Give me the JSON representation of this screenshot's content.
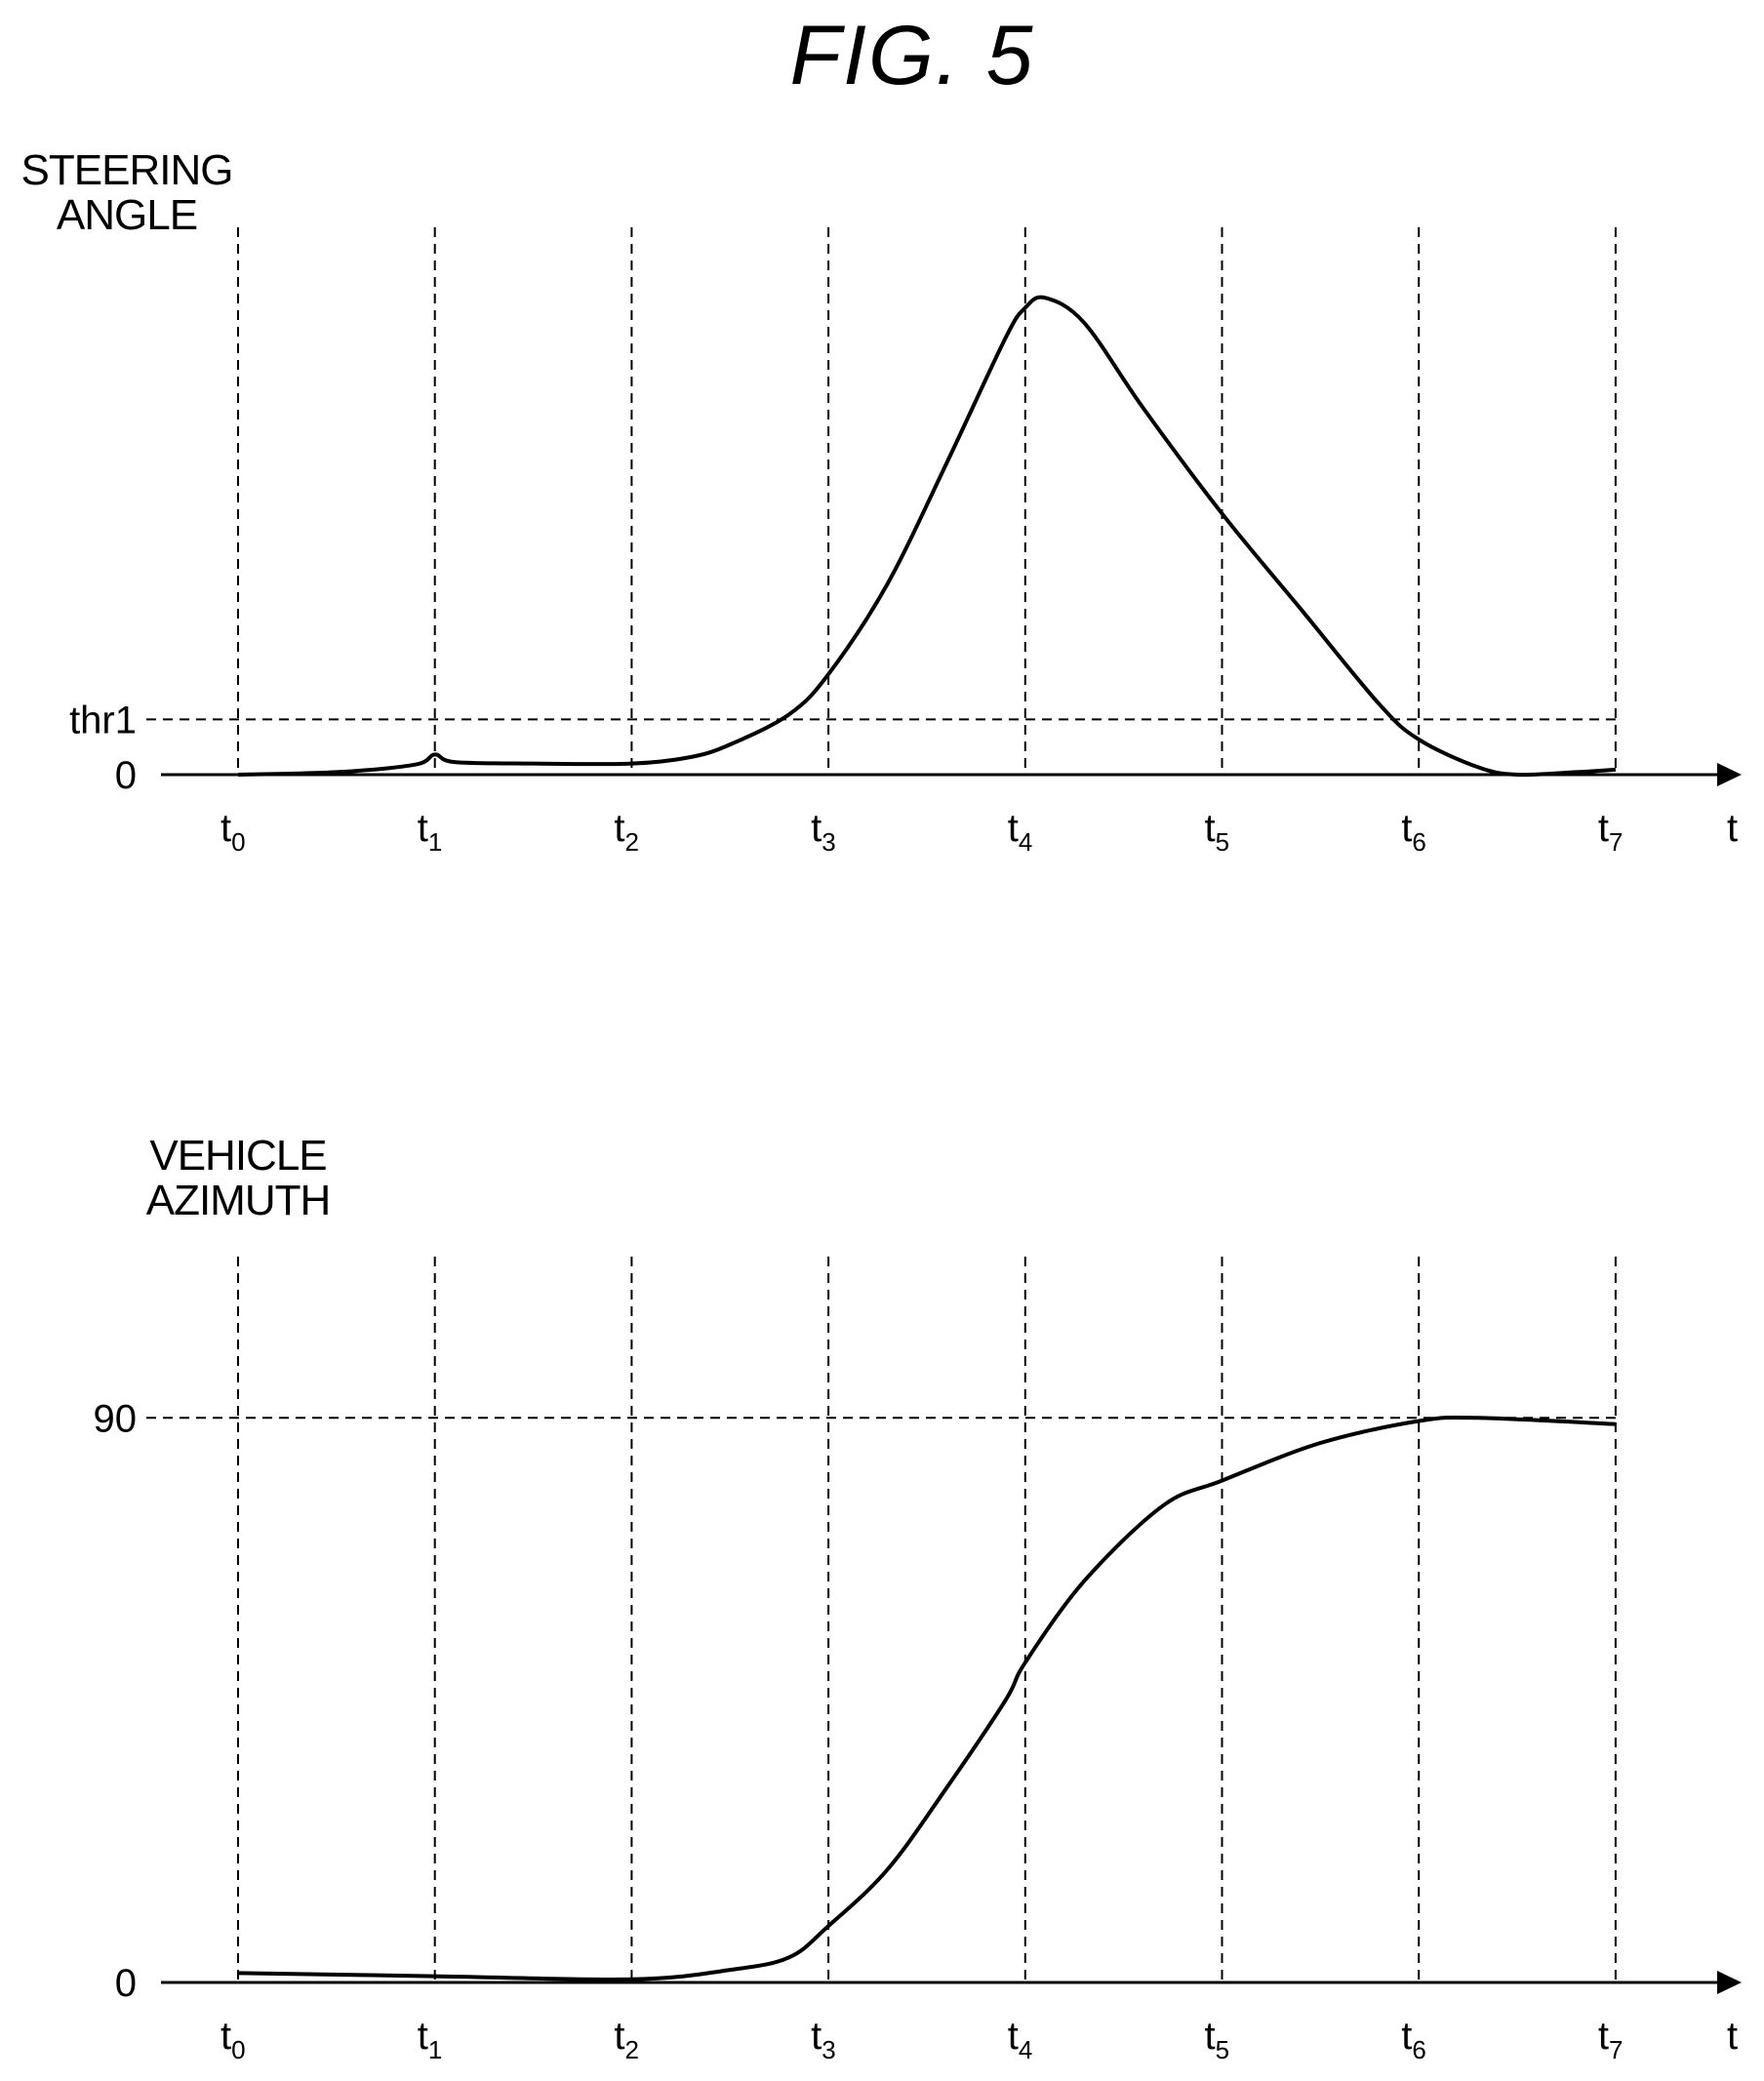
{
  "figure_title": "FIG. 5",
  "x_axis_label": "t",
  "time_markers": [
    "t0",
    "t1",
    "t2",
    "t3",
    "t4",
    "t5",
    "t6",
    "t7"
  ],
  "chart_data": [
    {
      "type": "line",
      "ylabel_lines": [
        "STEERING",
        "ANGLE"
      ],
      "xlabel": "t",
      "x": [
        0,
        1,
        2,
        3,
        4,
        5,
        6,
        7
      ],
      "x_tick_labels": [
        [
          "t",
          "0"
        ],
        [
          "t",
          "1"
        ],
        [
          "t",
          "2"
        ],
        [
          "t",
          "3"
        ],
        [
          "t",
          "4"
        ],
        [
          "t",
          "5"
        ],
        [
          "t",
          "6"
        ],
        [
          "t",
          "7"
        ]
      ],
      "y_tick_labels": [
        {
          "value": 0,
          "label": "0"
        },
        {
          "value": 0.11,
          "label": "thr1"
        }
      ],
      "reference_lines": [
        {
          "axis": "y",
          "value": 0.11,
          "label": "thr1"
        }
      ],
      "ylim": [
        0,
        1.1
      ],
      "series": [
        {
          "values": [
            [
              0,
              0
            ],
            [
              0.5,
              0.005
            ],
            [
              0.9,
              0.02
            ],
            [
              1,
              0.04
            ],
            [
              1.1,
              0.025
            ],
            [
              1.5,
              0.022
            ],
            [
              2,
              0.022
            ],
            [
              2.3,
              0.035
            ],
            [
              2.5,
              0.06
            ],
            [
              2.8,
              0.12
            ],
            [
              3,
              0.2
            ],
            [
              3.3,
              0.38
            ],
            [
              3.6,
              0.62
            ],
            [
              3.9,
              0.87
            ],
            [
              4,
              0.93
            ],
            [
              4.1,
              0.95
            ],
            [
              4.3,
              0.9
            ],
            [
              4.6,
              0.73
            ],
            [
              5,
              0.52
            ],
            [
              5.4,
              0.33
            ],
            [
              5.8,
              0.14
            ],
            [
              6,
              0.07
            ],
            [
              6.3,
              0.015
            ],
            [
              6.5,
              0
            ],
            [
              6.8,
              0.005
            ],
            [
              7,
              0.01
            ]
          ]
        }
      ]
    },
    {
      "type": "line",
      "ylabel_lines": [
        "VEHICLE",
        "AZIMUTH"
      ],
      "xlabel": "t",
      "x": [
        0,
        1,
        2,
        3,
        4,
        5,
        6,
        7
      ],
      "x_tick_labels": [
        [
          "t",
          "0"
        ],
        [
          "t",
          "1"
        ],
        [
          "t",
          "2"
        ],
        [
          "t",
          "3"
        ],
        [
          "t",
          "4"
        ],
        [
          "t",
          "5"
        ],
        [
          "t",
          "6"
        ],
        [
          "t",
          "7"
        ]
      ],
      "y_tick_labels": [
        {
          "value": 0,
          "label": "0"
        },
        {
          "value": 90,
          "label": "90"
        }
      ],
      "reference_lines": [
        {
          "axis": "y",
          "value": 90
        }
      ],
      "ylim": [
        0,
        100
      ],
      "series": [
        {
          "values": [
            [
              0,
              1.5
            ],
            [
              1,
              1
            ],
            [
              2,
              0.5
            ],
            [
              2.5,
              2
            ],
            [
              2.8,
              4
            ],
            [
              3,
              9
            ],
            [
              3.3,
              18
            ],
            [
              3.6,
              31
            ],
            [
              3.9,
              45
            ],
            [
              4,
              51
            ],
            [
              4.3,
              64
            ],
            [
              4.7,
              76
            ],
            [
              5,
              80
            ],
            [
              5.5,
              86
            ],
            [
              6,
              89.5
            ],
            [
              6.3,
              90
            ],
            [
              7,
              89
            ]
          ]
        }
      ]
    }
  ]
}
